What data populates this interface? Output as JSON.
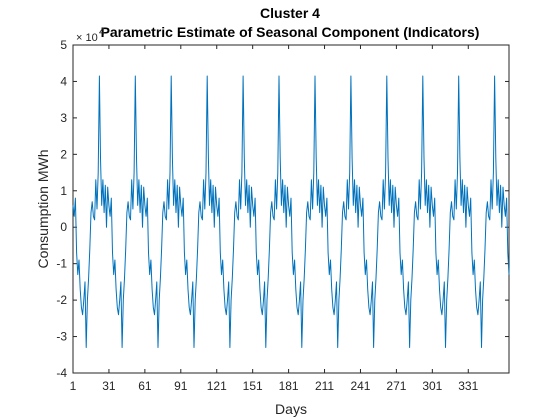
{
  "chart_data": {
    "type": "line",
    "title": "Cluster 4",
    "subtitle": "Parametric Estimate of Seasonal Component (Indicators)",
    "xlabel": "Days",
    "ylabel": "Consumption MWh",
    "y_multiplier_label": "× 10",
    "y_multiplier_exponent": "4",
    "xlim": [
      1,
      365
    ],
    "ylim": [
      -4,
      5
    ],
    "x_ticks": [
      1,
      31,
      61,
      91,
      121,
      151,
      181,
      211,
      241,
      271,
      301,
      331
    ],
    "x_tick_labels": [
      "1",
      "31",
      "61",
      "91",
      "121",
      "151",
      "181",
      "211",
      "241",
      "271",
      "301",
      "331"
    ],
    "y_ticks": [
      -4,
      -3,
      -2,
      -1,
      0,
      1,
      2,
      3,
      4,
      5
    ],
    "y_tick_labels": [
      "-4",
      "-3",
      "-2",
      "-1",
      "0",
      "1",
      "2",
      "3",
      "4",
      "5"
    ],
    "grid": false,
    "line_color": "#0072BD",
    "period_days": 30,
    "first_peak_day": 23,
    "series": [
      {
        "cycle_values": [
          0.6,
          0.3,
          0.8,
          -0.7,
          -1.3,
          -0.9,
          -1.7,
          -2.2,
          -2.4,
          -2.0,
          -1.5,
          -3.3,
          -2.0,
          -1.4,
          -0.6,
          0.4,
          0.7,
          0.3,
          0.2,
          1.3,
          0.5,
          1.5,
          4.15,
          1.9,
          0.6,
          1.3,
          0.4,
          1.15,
          0.0,
          1.1
        ]
      }
    ]
  }
}
